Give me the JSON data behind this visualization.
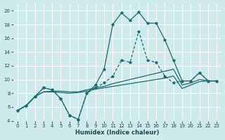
{
  "xlabel": "Humidex (Indice chaleur)",
  "bg_color": "#ceeaed",
  "grid_color": "#ffffff",
  "line_color": "#1a6b6b",
  "xlim": [
    -0.5,
    23.5
  ],
  "ylim": [
    4,
    21
  ],
  "yticks": [
    4,
    6,
    8,
    10,
    12,
    14,
    16,
    18,
    20
  ],
  "xticks": [
    0,
    1,
    2,
    3,
    4,
    5,
    6,
    7,
    8,
    9,
    10,
    11,
    12,
    13,
    14,
    15,
    16,
    17,
    18,
    19,
    20,
    21,
    22,
    23
  ],
  "curve_main_x": [
    0,
    1,
    2,
    3,
    4,
    5,
    6,
    7,
    8,
    9,
    10,
    11,
    12,
    13,
    14,
    15,
    16,
    17,
    18,
    19,
    20,
    21,
    22,
    23
  ],
  "curve_main_y": [
    5.5,
    6.2,
    7.5,
    8.8,
    8.5,
    7.2,
    4.8,
    4.2,
    8.0,
    9.2,
    11.5,
    18.0,
    19.7,
    18.6,
    19.8,
    18.2,
    18.2,
    15.8,
    12.8,
    9.8,
    9.8,
    11.0,
    9.8,
    9.8
  ],
  "curve_dashed_x": [
    0,
    1,
    2,
    3,
    4,
    5,
    6,
    7,
    8,
    9,
    10,
    11,
    12,
    13,
    14,
    15,
    16,
    17,
    18,
    19,
    20,
    21,
    22,
    23
  ],
  "curve_dashed_y": [
    5.5,
    6.2,
    7.5,
    8.8,
    8.5,
    7.2,
    4.8,
    4.2,
    8.0,
    8.8,
    9.5,
    10.5,
    12.8,
    12.5,
    17.0,
    12.8,
    12.5,
    10.5,
    9.5,
    9.8,
    9.8,
    11.0,
    9.8,
    9.8
  ],
  "curve_line1_x": [
    0,
    1,
    2,
    3,
    4,
    5,
    6,
    7,
    8,
    9,
    10,
    11,
    12,
    13,
    14,
    15,
    16,
    17,
    18,
    19,
    20,
    21,
    22,
    23
  ],
  "curve_line1_y": [
    5.5,
    6.2,
    7.5,
    8.2,
    8.3,
    8.3,
    8.2,
    8.2,
    8.5,
    8.8,
    9.0,
    9.4,
    9.7,
    10.0,
    10.3,
    10.6,
    10.9,
    11.2,
    11.5,
    9.2,
    9.5,
    10.0,
    9.8,
    9.8
  ],
  "curve_line2_x": [
    0,
    1,
    2,
    3,
    4,
    5,
    6,
    7,
    8,
    9,
    10,
    11,
    12,
    13,
    14,
    15,
    16,
    17,
    18,
    19,
    20,
    21,
    22,
    23
  ],
  "curve_line2_y": [
    5.5,
    6.2,
    7.5,
    8.2,
    8.2,
    8.1,
    8.0,
    8.1,
    8.3,
    8.6,
    8.8,
    9.0,
    9.2,
    9.4,
    9.6,
    9.8,
    10.0,
    10.2,
    10.5,
    8.7,
    9.2,
    9.7,
    9.8,
    9.8
  ]
}
